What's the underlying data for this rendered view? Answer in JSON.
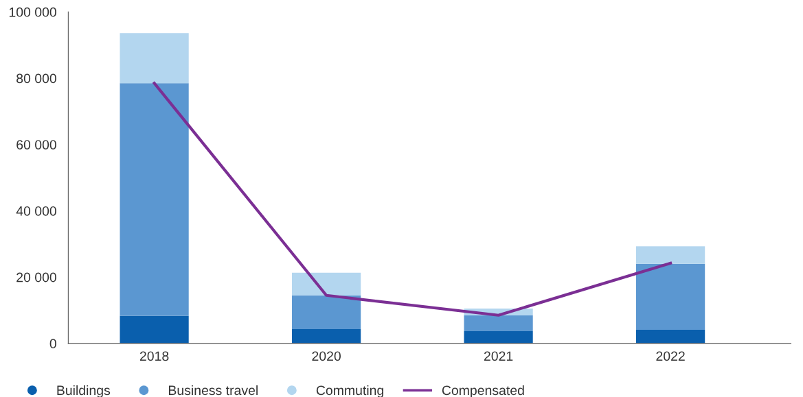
{
  "chart_data": {
    "type": "bar",
    "stacked": true,
    "categories": [
      "2018",
      "2020",
      "2021",
      "2022"
    ],
    "series": [
      {
        "name": "Buildings",
        "color": "#0a5fad",
        "values": [
          8300,
          4300,
          3700,
          4100
        ]
      },
      {
        "name": "Business travel",
        "color": "#5b97d1",
        "values": [
          70200,
          10200,
          4800,
          19900
        ]
      },
      {
        "name": "Commuting",
        "color": "#b3d6ef",
        "values": [
          15100,
          6800,
          2000,
          5300
        ]
      },
      {
        "name": "Compensated",
        "type": "line",
        "color": "#7b2f94",
        "values": [
          78500,
          14500,
          8500,
          24200
        ]
      }
    ],
    "ylim": [
      0,
      100000
    ],
    "yticks": [
      0,
      {
        "value": 20000,
        "label": "20 000"
      },
      {
        "value": 40000,
        "label": "40 000"
      },
      {
        "value": 60000,
        "label": "60 000"
      },
      {
        "value": 80000,
        "label": "80 000"
      },
      {
        "value": 100000,
        "label": "100 000"
      }
    ],
    "grid": false,
    "legend": "bottom"
  }
}
